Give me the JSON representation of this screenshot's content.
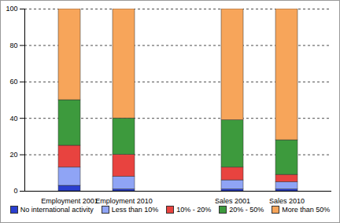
{
  "chart_data": {
    "type": "bar",
    "stacked": true,
    "categories": [
      "Employment 2001",
      "Employment 2010",
      null,
      "Sales 2001",
      "Sales 2010"
    ],
    "series": [
      {
        "name": "No international activity",
        "color": "#2a3fd0",
        "values": [
          3,
          1,
          null,
          1,
          1
        ]
      },
      {
        "name": "Less than 10%",
        "color": "#8fa4f5",
        "values": [
          10,
          7,
          null,
          5,
          4
        ]
      },
      {
        "name": "10% - 20%",
        "color": "#e8433f",
        "values": [
          12,
          12,
          null,
          7,
          4
        ]
      },
      {
        "name": "20% - 50%",
        "color": "#3d9a3d",
        "values": [
          25,
          20,
          null,
          26,
          19
        ]
      },
      {
        "name": "More than 50%",
        "color": "#f7a55a",
        "values": [
          50,
          60,
          null,
          61,
          72
        ]
      }
    ],
    "ylim": [
      0,
      100
    ],
    "yticks": [
      0,
      20,
      40,
      60,
      80,
      100
    ],
    "grid": true,
    "legend": "bottom"
  }
}
